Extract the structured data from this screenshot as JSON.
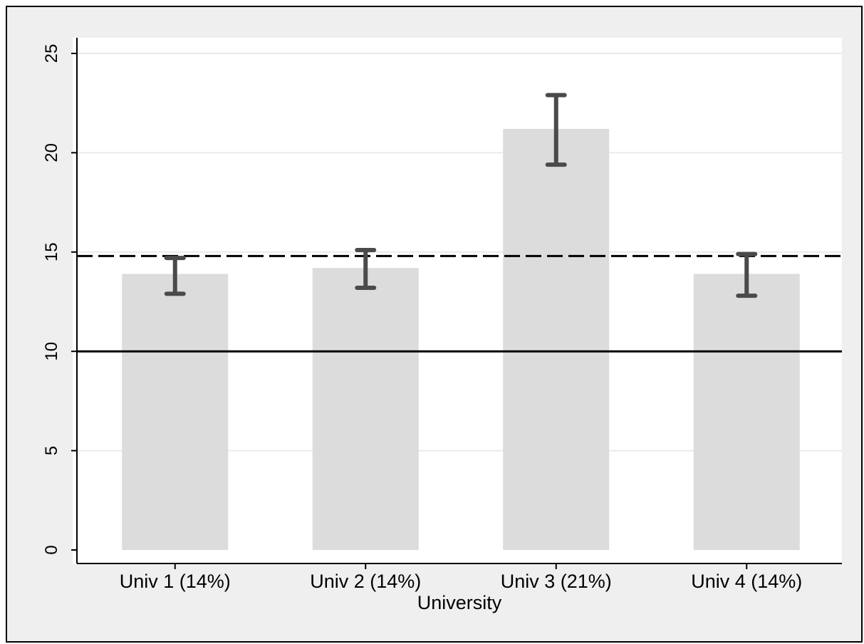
{
  "chart_data": {
    "type": "bar",
    "categories": [
      "Univ 1 (14%)",
      "Univ 2 (14%)",
      "Univ 3 (21%)",
      "Univ 4 (14%)"
    ],
    "values": [
      13.9,
      14.2,
      21.2,
      13.9
    ],
    "error_bars": [
      {
        "low": 12.9,
        "high": 14.7
      },
      {
        "low": 13.2,
        "high": 15.1
      },
      {
        "low": 19.4,
        "high": 22.9
      },
      {
        "low": 12.8,
        "high": 14.9
      }
    ],
    "reference_lines": [
      {
        "value": 10,
        "style": "solid"
      },
      {
        "value": 14.8,
        "style": "dashed"
      }
    ],
    "xlabel": "University",
    "ylabel": "",
    "ylim": [
      0,
      25
    ],
    "yticks": [
      0,
      5,
      10,
      15,
      20,
      25
    ],
    "grid": true,
    "colors": {
      "background": "#efefef",
      "plot_region": "#ffffff",
      "bar": "#dcdcdc",
      "error_bar": "#4a4a4a",
      "gridline": "#eaeaea",
      "reference_line": "#000000"
    }
  }
}
